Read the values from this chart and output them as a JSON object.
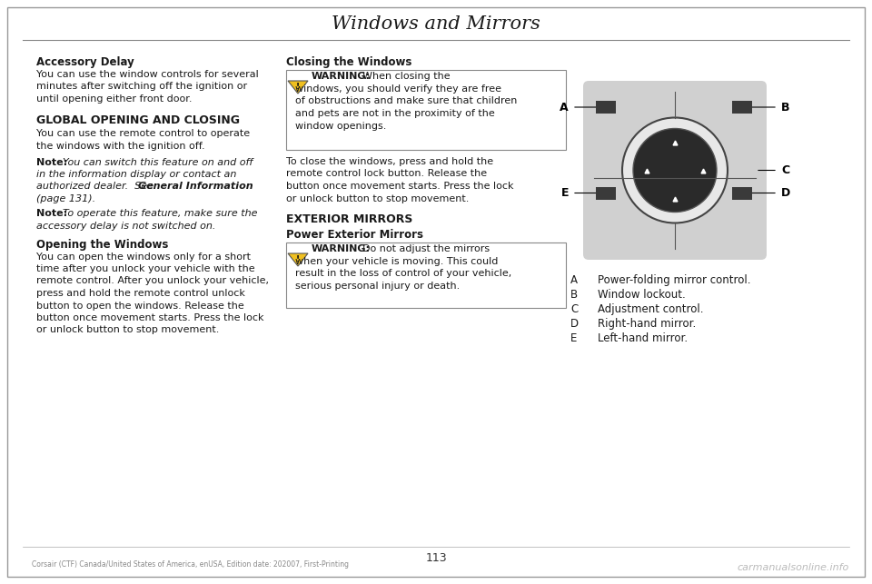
{
  "title": "Windows and Mirrors",
  "page_number": "113",
  "footer_left": "Corsair (CTF) Canada/United States of America, enUSA, Edition date: 202007, First-Printing",
  "footer_right": "carmanualsonline.info",
  "bg_color": "#ffffff",
  "text_color": "#1a1a1a",
  "section1_heading": "Accessory Delay",
  "section1_text": [
    "You can use the window controls for several",
    "minutes after switching off the ignition or",
    "until opening either front door."
  ],
  "section2_heading": "GLOBAL OPENING AND CLOSING",
  "section2_text1": [
    "You can use the remote control to operate",
    "the windows with the ignition off."
  ],
  "section3_heading": "Opening the Windows",
  "section3_text": [
    "You can open the windows only for a short",
    "time after you unlock your vehicle with the",
    "remote control. After you unlock your vehicle,",
    "press and hold the remote control unlock",
    "button to open the windows. Release the",
    "button once movement starts. Press the lock",
    "or unlock button to stop movement."
  ],
  "col2_heading1": "Closing the Windows",
  "warning1_line1": "When closing the",
  "warning1_lines": [
    "windows, you should verify they are free",
    "of obstructions and make sure that children",
    "and pets are not in the proximity of the",
    "window openings."
  ],
  "col2_text1": [
    "To close the windows, press and hold the",
    "remote control lock button. Release the",
    "button once movement starts. Press the lock",
    "or unlock button to stop movement."
  ],
  "col2_heading2": "EXTERIOR MIRRORS",
  "col2_heading3": "Power Exterior Mirrors",
  "warning2_line1": "Do not adjust the mirrors",
  "warning2_lines": [
    "when your vehicle is moving. This could",
    "result in the loss of control of your vehicle,",
    "serious personal injury or death."
  ],
  "diagram_labels": [
    "A",
    "B",
    "C",
    "D",
    "E"
  ],
  "diagram_descriptions": [
    "Power-folding mirror control.",
    "Window lockout.",
    "Adjustment control.",
    "Right-hand mirror.",
    "Left-hand mirror."
  ]
}
